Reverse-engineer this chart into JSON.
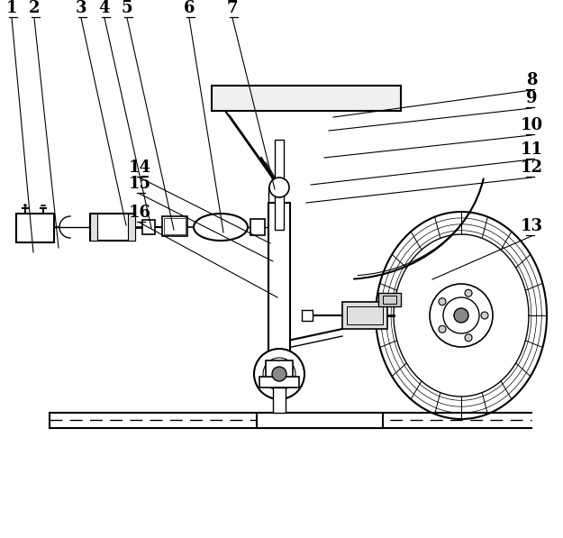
{
  "bg_color": "#ffffff",
  "label_fontsize": 13,
  "figsize": [
    6.25,
    5.97
  ],
  "dpi": 100,
  "leaders_top": [
    [
      1,
      13,
      18,
      37,
      280
    ],
    [
      2,
      38,
      18,
      65,
      275
    ],
    [
      3,
      90,
      18,
      140,
      250
    ],
    [
      4,
      116,
      18,
      168,
      253
    ],
    [
      5,
      141,
      18,
      193,
      255
    ],
    [
      6,
      210,
      18,
      248,
      258
    ],
    [
      7,
      258,
      18,
      305,
      210
    ]
  ],
  "leaders_right": [
    [
      8,
      590,
      98,
      370,
      130
    ],
    [
      9,
      590,
      118,
      365,
      145
    ],
    [
      10,
      590,
      148,
      360,
      175
    ],
    [
      11,
      590,
      175,
      345,
      205
    ],
    [
      12,
      590,
      195,
      340,
      225
    ],
    [
      13,
      590,
      260,
      480,
      310
    ]
  ],
  "leaders_left": [
    [
      14,
      155,
      195,
      300,
      270
    ],
    [
      15,
      155,
      213,
      303,
      290
    ],
    [
      16,
      155,
      245,
      308,
      330
    ]
  ]
}
